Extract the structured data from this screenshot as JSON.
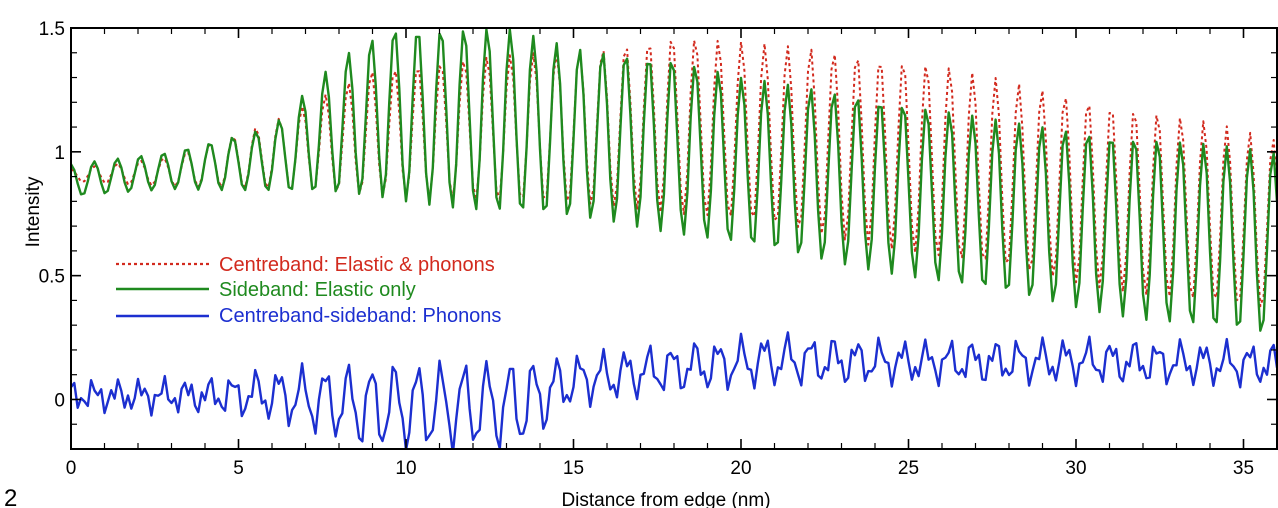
{
  "chart_data": {
    "type": "line",
    "title": "",
    "panel_label": "2",
    "xlabel": "Distance from edge (nm)",
    "ylabel": "Intensity",
    "xlim": [
      0,
      36
    ],
    "ylim": [
      -0.2,
      1.5
    ],
    "xticks": [
      0,
      5,
      10,
      15,
      20,
      25,
      30,
      35
    ],
    "yticks": [
      0,
      0.5,
      1,
      1.5
    ],
    "ytick_labels": [
      "0",
      "0.5",
      "1",
      "1.5"
    ],
    "grid": false,
    "legend_position": "left-middle",
    "series": [
      {
        "name": "Centreband: Elastic & phonons",
        "color": "#d22a1e",
        "dash": "dotted",
        "period_nm": 0.69,
        "x_range": [
          0,
          36
        ],
        "peak_envelope": [
          [
            0,
            0.93
          ],
          [
            3,
            0.98
          ],
          [
            6,
            1.12
          ],
          [
            9,
            1.33
          ],
          [
            12,
            1.38
          ],
          [
            16,
            1.42
          ],
          [
            18,
            1.47
          ],
          [
            22,
            1.42
          ],
          [
            26,
            1.35
          ],
          [
            30,
            1.22
          ],
          [
            34,
            1.12
          ],
          [
            36,
            1.05
          ]
        ],
        "trough_envelope": [
          [
            0,
            0.88
          ],
          [
            3,
            0.86
          ],
          [
            6,
            0.85
          ],
          [
            9,
            0.82
          ],
          [
            12,
            0.8
          ],
          [
            16,
            0.78
          ],
          [
            20,
            0.72
          ],
          [
            24,
            0.62
          ],
          [
            28,
            0.52
          ],
          [
            32,
            0.42
          ],
          [
            36,
            0.35
          ]
        ]
      },
      {
        "name": "Sideband: Elastic only",
        "color": "#1f8a1f",
        "dash": "solid",
        "period_nm": 0.69,
        "x_range": [
          0,
          36
        ],
        "peak_envelope": [
          [
            0,
            0.95
          ],
          [
            3,
            1.0
          ],
          [
            6,
            1.1
          ],
          [
            8,
            1.38
          ],
          [
            9.5,
            1.5
          ],
          [
            13,
            1.5
          ],
          [
            15,
            1.42
          ],
          [
            18,
            1.38
          ],
          [
            20,
            1.3
          ],
          [
            24,
            1.22
          ],
          [
            28,
            1.12
          ],
          [
            32,
            1.06
          ],
          [
            36,
            1.0
          ]
        ],
        "trough_envelope": [
          [
            0,
            0.82
          ],
          [
            3,
            0.85
          ],
          [
            6,
            0.84
          ],
          [
            9,
            0.82
          ],
          [
            12,
            0.76
          ],
          [
            16,
            0.72
          ],
          [
            20,
            0.62
          ],
          [
            24,
            0.52
          ],
          [
            28,
            0.42
          ],
          [
            32,
            0.32
          ],
          [
            36,
            0.25
          ]
        ]
      },
      {
        "name": "Centreband-sideband: Phonons",
        "color": "#1c2fd0",
        "dash": "solid",
        "period_nm": 0.69,
        "x_range": [
          0,
          36
        ],
        "peak_envelope": [
          [
            0,
            0.05
          ],
          [
            4,
            0.06
          ],
          [
            6,
            0.1
          ],
          [
            9,
            0.12
          ],
          [
            12,
            0.13
          ],
          [
            14,
            0.14
          ],
          [
            16,
            0.17
          ],
          [
            18,
            0.2
          ],
          [
            21,
            0.24
          ],
          [
            25,
            0.21
          ],
          [
            30,
            0.22
          ],
          [
            36,
            0.2
          ]
        ],
        "trough_envelope": [
          [
            0,
            -0.02
          ],
          [
            4,
            -0.03
          ],
          [
            6,
            -0.06
          ],
          [
            9,
            -0.18
          ],
          [
            12,
            -0.18
          ],
          [
            13.5,
            -0.17
          ],
          [
            15,
            0.0
          ],
          [
            18,
            0.05
          ],
          [
            21,
            0.08
          ],
          [
            25,
            0.09
          ],
          [
            30,
            0.09
          ],
          [
            36,
            0.08
          ]
        ]
      }
    ]
  }
}
